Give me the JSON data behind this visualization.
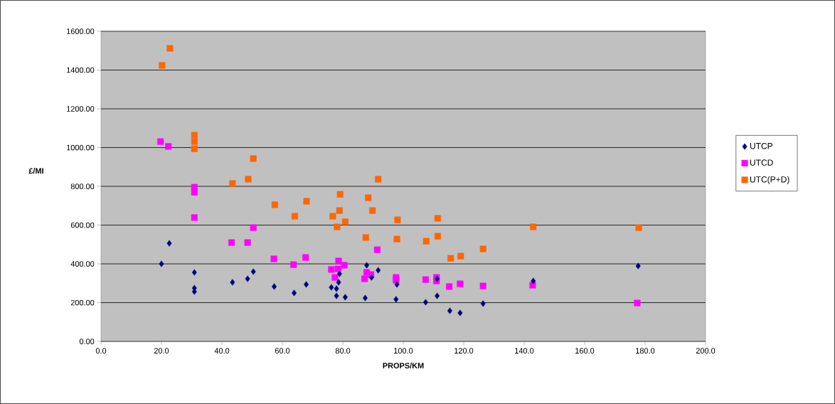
{
  "chart_data": {
    "type": "scatter",
    "xlabel": "PROPS/KM",
    "ylabel": "£/MI",
    "xlim": [
      0,
      200
    ],
    "ylim": [
      0,
      1600
    ],
    "grid": "y",
    "legend": "right",
    "xticks": [
      {
        "value": 0,
        "label": "0.0"
      },
      {
        "value": 20,
        "label": "20.0"
      },
      {
        "value": 40,
        "label": "40.0"
      },
      {
        "value": 60,
        "label": "60.0"
      },
      {
        "value": 80,
        "label": "80.0"
      },
      {
        "value": 100,
        "label": "100.0"
      },
      {
        "value": 120,
        "label": "120.0"
      },
      {
        "value": 140,
        "label": "140.0"
      },
      {
        "value": 160,
        "label": "160.0"
      },
      {
        "value": 180,
        "label": "180.0"
      },
      {
        "value": 200,
        "label": "200.0"
      }
    ],
    "yticks": [
      {
        "value": 0,
        "label": "0.00"
      },
      {
        "value": 200,
        "label": "200.00"
      },
      {
        "value": 400,
        "label": "400.00"
      },
      {
        "value": 600,
        "label": "600.00"
      },
      {
        "value": 800,
        "label": "800.00"
      },
      {
        "value": 1000,
        "label": "1000.00"
      },
      {
        "value": 1200,
        "label": "1200.00"
      },
      {
        "value": 1400,
        "label": "1400.00"
      },
      {
        "value": 1600,
        "label": "1600.00"
      }
    ],
    "series": [
      {
        "name": "UTCP",
        "color": "#000080",
        "marker": "diamond",
        "x": [
          20,
          22.6,
          30.9,
          30.9,
          30.9,
          43.5,
          48.5,
          50.4,
          57.3,
          63.9,
          67.9,
          87.9,
          91.7,
          78.9,
          78.6,
          76.2,
          77.9,
          77.9,
          80.8,
          89.5,
          87.4,
          97.9,
          97.6,
          107.4,
          111.2,
          111.2,
          115.4,
          118.8,
          126.4,
          143,
          177.7
        ],
        "values": [
          400,
          506,
          356,
          275,
          257,
          305,
          323,
          360,
          283,
          250,
          294,
          393,
          367,
          349,
          305,
          279,
          272,
          235,
          228,
          330,
          224,
          294,
          217,
          202,
          323,
          235,
          158,
          147,
          195,
          312,
          389
        ]
      },
      {
        "name": "UTCD",
        "color": "#ff00ff",
        "marker": "square",
        "x": [
          19.7,
          22.3,
          30.9,
          30.9,
          30.9,
          50.4,
          43.2,
          48.5,
          57.2,
          63.7,
          67.7,
          91.4,
          78.6,
          80.5,
          76.2,
          78.4,
          77.4,
          87.9,
          89.3,
          87.2,
          97.6,
          97.6,
          107.4,
          111,
          111,
          115.2,
          118.8,
          126.4,
          142.8,
          177.4
        ],
        "values": [
          1031,
          1006,
          796,
          770,
          639,
          587,
          510,
          510,
          426,
          396,
          433,
          473,
          415,
          393,
          371,
          374,
          330,
          356,
          345,
          323,
          330,
          316,
          319,
          330,
          312,
          283,
          297,
          286,
          290,
          198
        ]
      },
      {
        "name": "UTC(P+D)",
        "color": "#ff6600",
        "marker": "square",
        "x": [
          20.2,
          22.8,
          30.9,
          30.9,
          30.9,
          50.4,
          43.5,
          48.7,
          57.5,
          64.1,
          68,
          91.7,
          79.1,
          88.4,
          78.9,
          89.8,
          76.7,
          80.8,
          78.1,
          98.1,
          111.4,
          87.6,
          97.9,
          107.6,
          111.4,
          115.7,
          119,
          126.4,
          143,
          177.9
        ],
        "values": [
          1424,
          1512,
          1064,
          1031,
          994,
          943,
          815,
          837,
          705,
          646,
          723,
          837,
          759,
          741,
          675,
          675,
          646,
          617,
          591,
          627,
          635,
          536,
          528,
          517,
          543,
          429,
          440,
          477,
          591,
          587
        ]
      }
    ]
  }
}
